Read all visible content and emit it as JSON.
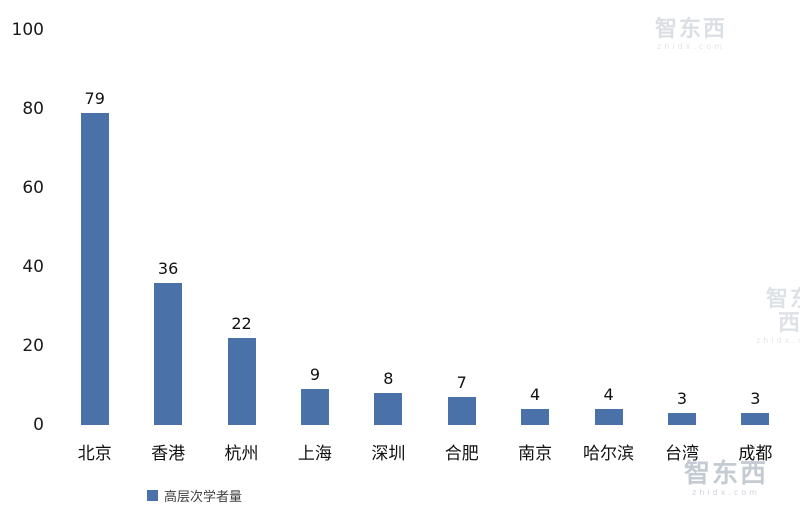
{
  "chart_data": {
    "type": "bar",
    "title": "",
    "xlabel": "",
    "ylabel": "",
    "categories": [
      "北京",
      "香港",
      "杭州",
      "上海",
      "深圳",
      "合肥",
      "南京",
      "哈尔滨",
      "台湾",
      "成都"
    ],
    "values": [
      79,
      36,
      22,
      9,
      8,
      7,
      4,
      4,
      3,
      3
    ],
    "series_name": "高层次学者量",
    "ylim": [
      0,
      100
    ],
    "yticks": [
      0,
      20,
      40,
      60,
      80,
      100
    ],
    "grid": false,
    "legend_position": "bottom-left",
    "bar_color": "#4a72a8"
  },
  "legend": {
    "label": "高层次学者量",
    "swatch_color": "#4a72a8"
  },
  "watermark": {
    "text": "智东西",
    "subtext": "zhidx.com"
  }
}
